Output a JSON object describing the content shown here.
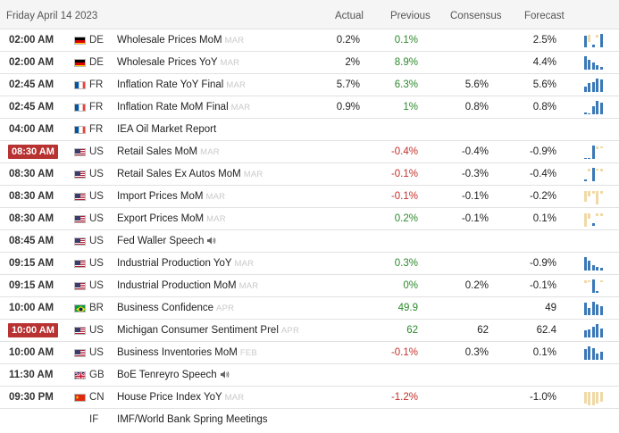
{
  "header": {
    "date": "Friday April 14 2023",
    "actual": "Actual",
    "previous": "Previous",
    "consensus": "Consensus",
    "forecast": "Forecast"
  },
  "colors": {
    "positive": "#2c8a2c",
    "negative": "#c4302b",
    "bar": "#3a78b8",
    "bar_muted": "#f0d9a6"
  },
  "rows": [
    {
      "time": "02:00 AM",
      "highlight": false,
      "country": "DE",
      "flag": "germany-flag-icon",
      "event": "Wholesale Prices MoM",
      "ref": "MAR",
      "actual": "0.2%",
      "previous": "0.1%",
      "prev_class": "pos",
      "consensus": "",
      "forecast": "2.5%",
      "chart": [
        5,
        -3,
        1,
        -1,
        6
      ],
      "speech": false
    },
    {
      "time": "02:00 AM",
      "highlight": false,
      "country": "DE",
      "flag": "germany-flag-icon",
      "event": "Wholesale Prices YoY",
      "ref": "MAR",
      "actual": "2%",
      "previous": "8.9%",
      "prev_class": "pos",
      "consensus": "",
      "forecast": "4.4%",
      "chart": [
        16,
        12,
        8,
        5,
        3
      ],
      "speech": false
    },
    {
      "time": "02:45 AM",
      "highlight": false,
      "country": "FR",
      "flag": "france-flag-icon",
      "event": "Inflation Rate YoY Final",
      "ref": "MAR",
      "actual": "5.7%",
      "previous": "6.3%",
      "prev_class": "pos",
      "consensus": "5.6%",
      "forecast": "5.6%",
      "chart": [
        6,
        9,
        10,
        14,
        13
      ],
      "speech": false
    },
    {
      "time": "02:45 AM",
      "highlight": false,
      "country": "FR",
      "flag": "france-flag-icon",
      "event": "Inflation Rate MoM Final",
      "ref": "MAR",
      "actual": "0.9%",
      "previous": "1%",
      "prev_class": "pos",
      "consensus": "0.8%",
      "forecast": "0.8%",
      "chart": [
        2,
        1,
        8,
        14,
        12
      ],
      "speech": false
    },
    {
      "time": "04:00 AM",
      "highlight": false,
      "country": "FR",
      "flag": "france-flag-icon",
      "event": "IEA Oil Market Report",
      "ref": "",
      "actual": "",
      "previous": "",
      "prev_class": "",
      "consensus": "",
      "forecast": "",
      "chart": [],
      "speech": false
    },
    {
      "time": "08:30 AM",
      "highlight": true,
      "country": "US",
      "flag": "usa-flag-icon",
      "event": "Retail Sales MoM",
      "ref": "MAR",
      "actual": "",
      "previous": "-0.4%",
      "prev_class": "neg",
      "consensus": "-0.4%",
      "forecast": "-0.9%",
      "chart": [
        1,
        1,
        14,
        -3,
        -2
      ],
      "speech": false
    },
    {
      "time": "08:30 AM",
      "highlight": false,
      "country": "US",
      "flag": "usa-flag-icon",
      "event": "Retail Sales Ex Autos MoM",
      "ref": "MAR",
      "actual": "",
      "previous": "-0.1%",
      "prev_class": "neg",
      "consensus": "-0.3%",
      "forecast": "-0.4%",
      "chart": [
        1,
        -2,
        10,
        -1,
        -2
      ],
      "speech": false
    },
    {
      "time": "08:30 AM",
      "highlight": false,
      "country": "US",
      "flag": "usa-flag-icon",
      "event": "Import Prices MoM",
      "ref": "MAR",
      "actual": "",
      "previous": "-0.1%",
      "prev_class": "neg",
      "consensus": "-0.1%",
      "forecast": "-0.2%",
      "chart": [
        -4,
        -2,
        -1,
        -5,
        -1
      ],
      "speech": false
    },
    {
      "time": "08:30 AM",
      "highlight": false,
      "country": "US",
      "flag": "usa-flag-icon",
      "event": "Export Prices MoM",
      "ref": "MAR",
      "actual": "",
      "previous": "0.2%",
      "prev_class": "pos",
      "consensus": "-0.1%",
      "forecast": "0.1%",
      "chart": [
        -5,
        -2,
        1,
        -1,
        -1
      ],
      "speech": false
    },
    {
      "time": "08:45 AM",
      "highlight": false,
      "country": "US",
      "flag": "usa-flag-icon",
      "event": "Fed Waller Speech",
      "ref": "",
      "actual": "",
      "previous": "",
      "prev_class": "",
      "consensus": "",
      "forecast": "",
      "chart": [],
      "speech": true
    },
    {
      "time": "09:15 AM",
      "highlight": false,
      "country": "US",
      "flag": "usa-flag-icon",
      "event": "Industrial Production YoY",
      "ref": "MAR",
      "actual": "",
      "previous": "0.3%",
      "prev_class": "pos",
      "consensus": "",
      "forecast": "-0.9%",
      "chart": [
        12,
        9,
        5,
        3,
        2
      ],
      "speech": false
    },
    {
      "time": "09:15 AM",
      "highlight": false,
      "country": "US",
      "flag": "usa-flag-icon",
      "event": "Industrial Production MoM",
      "ref": "MAR",
      "actual": "",
      "previous": "0%",
      "prev_class": "pos",
      "consensus": "0.2%",
      "forecast": "-0.1%",
      "chart": [
        -2,
        -1,
        10,
        1,
        -1
      ],
      "speech": false
    },
    {
      "time": "10:00 AM",
      "highlight": false,
      "country": "BR",
      "flag": "brazil-flag-icon",
      "event": "Business Confidence",
      "ref": "APR",
      "actual": "",
      "previous": "49.9",
      "prev_class": "pos",
      "consensus": "",
      "forecast": "49",
      "chart": [
        14,
        8,
        15,
        12,
        10
      ],
      "speech": false
    },
    {
      "time": "10:00 AM",
      "highlight": true,
      "country": "US",
      "flag": "usa-flag-icon",
      "event": "Michigan Consumer Sentiment Prel",
      "ref": "APR",
      "actual": "",
      "previous": "62",
      "prev_class": "pos",
      "consensus": "62",
      "forecast": "62.4",
      "chart": [
        9,
        10,
        13,
        16,
        11
      ],
      "speech": false
    },
    {
      "time": "10:00 AM",
      "highlight": false,
      "country": "US",
      "flag": "usa-flag-icon",
      "event": "Business Inventories MoM",
      "ref": "FEB",
      "actual": "",
      "previous": "-0.1%",
      "prev_class": "neg",
      "consensus": "0.3%",
      "forecast": "0.1%",
      "chart": [
        10,
        13,
        11,
        6,
        8
      ],
      "speech": false
    },
    {
      "time": "11:30 AM",
      "highlight": false,
      "country": "GB",
      "flag": "uk-flag-icon",
      "event": "BoE Tenreyro Speech",
      "ref": "",
      "actual": "",
      "previous": "",
      "prev_class": "",
      "consensus": "",
      "forecast": "",
      "chart": [],
      "speech": true
    },
    {
      "time": "09:30 PM",
      "highlight": false,
      "country": "CN",
      "flag": "china-flag-icon",
      "event": "House Price Index YoY",
      "ref": "MAR",
      "actual": "",
      "previous": "-1.2%",
      "prev_class": "neg",
      "consensus": "",
      "forecast": "-1.0%",
      "chart": [
        -12,
        -14,
        -14,
        -12,
        -10
      ],
      "speech": false
    },
    {
      "time": "",
      "highlight": false,
      "country": "IF",
      "flag": "",
      "event": "IMF/World Bank Spring Meetings",
      "ref": "",
      "actual": "",
      "previous": "",
      "prev_class": "",
      "consensus": "",
      "forecast": "",
      "chart": [],
      "speech": false
    }
  ]
}
